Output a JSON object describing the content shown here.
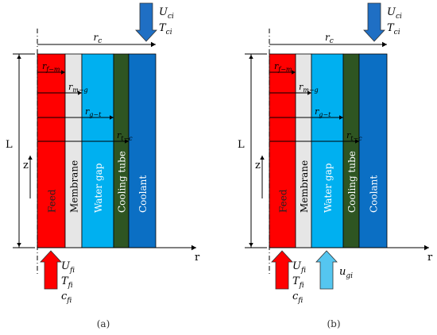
{
  "panels": [
    {
      "id": "a",
      "caption": "(a)",
      "length_label": "L",
      "z_axis_label": "z",
      "r_axis_label": "r",
      "rc_label": "r",
      "rc_sub": "c",
      "coolant_inlet": {
        "u_base": "U",
        "u_sub": "ci",
        "t_base": "T",
        "t_sub": "ci"
      },
      "feed_inlet": {
        "u_base": "U",
        "u_sub": "fi",
        "t_base": "T",
        "t_sub": "fi",
        "c_base": "c",
        "c_sub": "fi"
      },
      "gap_inlet": null,
      "layers": [
        {
          "name": "Feed",
          "color": "#ff0000"
        },
        {
          "name": "Membrane",
          "color": "#e6e6e6"
        },
        {
          "name": "Water gap",
          "color": "#00b0f0"
        },
        {
          "name": "Cooling tube",
          "color": "#2e5522"
        },
        {
          "name": "Coolant",
          "color": "#0b6fc4"
        }
      ],
      "radii": [
        {
          "base": "r",
          "sub": "f−m"
        },
        {
          "base": "r",
          "sub": "m−g"
        },
        {
          "base": "r",
          "sub": "g−t"
        },
        {
          "base": "r",
          "sub": "t−c"
        }
      ]
    },
    {
      "id": "b",
      "caption": "(b)",
      "length_label": "L",
      "z_axis_label": "z",
      "r_axis_label": "r",
      "rc_label": "r",
      "rc_sub": "c",
      "coolant_inlet": {
        "u_base": "U",
        "u_sub": "ci",
        "t_base": "T",
        "t_sub": "ci"
      },
      "feed_inlet": {
        "u_base": "U",
        "u_sub": "fi",
        "t_base": "T",
        "t_sub": "fi",
        "c_base": "c",
        "c_sub": "fi"
      },
      "gap_inlet": {
        "u_base": "u",
        "u_sub": "gi"
      },
      "layers": [
        {
          "name": "Feed",
          "color": "#ff0000"
        },
        {
          "name": "Membrane",
          "color": "#e6e6e6"
        },
        {
          "name": "Water gap",
          "color": "#00b0f0"
        },
        {
          "name": "Cooling tube",
          "color": "#2e5522"
        },
        {
          "name": "Coolant",
          "color": "#0b6fc4"
        }
      ],
      "radii": [
        {
          "base": "r",
          "sub": "f−m"
        },
        {
          "base": "r",
          "sub": "m−g"
        },
        {
          "base": "r",
          "sub": "g−t"
        },
        {
          "base": "r",
          "sub": "t−c"
        }
      ]
    }
  ],
  "colors": {
    "feed_arrow": "#ff0000",
    "gap_arrow": "#55c6f0",
    "coolant_arrow": "#1f6fc4",
    "line": "#000000"
  }
}
